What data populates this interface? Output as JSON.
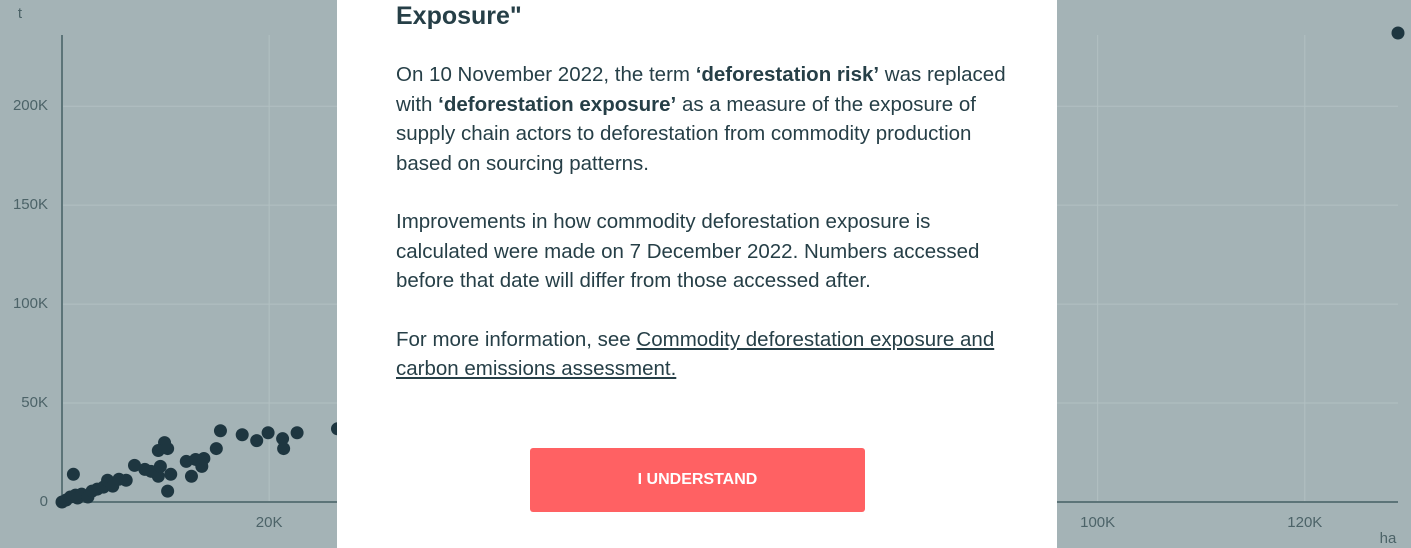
{
  "chart_data": {
    "type": "scatter",
    "x_label": "ha",
    "y_label": "t",
    "x": [
      0,
      400,
      800,
      1100,
      1300,
      1500,
      1900,
      2500,
      2900,
      3400,
      4000,
      4400,
      4900,
      5500,
      6200,
      7000,
      8000,
      8600,
      9300,
      9500,
      9900,
      9300,
      10200,
      10500,
      10200,
      12000,
      12500,
      12900,
      13500,
      13700,
      14900,
      15300,
      17400,
      18800,
      19900,
      21300,
      21400,
      22700,
      26600,
      129000
    ],
    "values": [
      0,
      1000,
      2500,
      14000,
      3500,
      2000,
      4000,
      2500,
      5500,
      6500,
      7500,
      11000,
      8000,
      11500,
      11000,
      18500,
      16500,
      15500,
      13000,
      18000,
      30000,
      26000,
      5500,
      14000,
      27000,
      20500,
      13000,
      21500,
      18000,
      22000,
      27000,
      36000,
      34000,
      31000,
      35000,
      32000,
      27000,
      35000,
      37000,
      237000
    ],
    "color": "#1e3640",
    "xlim": [
      0,
      129000
    ],
    "ylim": [
      0,
      236000
    ],
    "xticks": [
      {
        "value": 20000,
        "label": "20K"
      },
      {
        "value": 100000,
        "label": "100K"
      },
      {
        "value": 120000,
        "label": "120K"
      }
    ],
    "yticks": [
      0,
      {
        "value": 50000,
        "label": "50K"
      },
      {
        "value": 100000,
        "label": "100K"
      },
      {
        "value": 150000,
        "label": "150K"
      },
      {
        "value": 200000,
        "label": "200K"
      }
    ],
    "grid": true
  },
  "modal": {
    "title": "Exposure\"",
    "p1": [
      "On 10 November 2022, the term ",
      "‘deforestation risk’",
      " was replaced with ",
      "‘deforestation exposure’",
      " as a measure of the exposure of supply chain actors to deforestation from commodity production based on sourcing patterns."
    ],
    "p2": "Improvements in how commodity deforestation exposure is calculated were made on 7 December 2022. Numbers accessed before that date will differ from those accessed after.",
    "p3": "For more information, see ",
    "link": "Commodity deforestation exposure and carbon emissions assessment.",
    "button": "I UNDERSTAND"
  }
}
